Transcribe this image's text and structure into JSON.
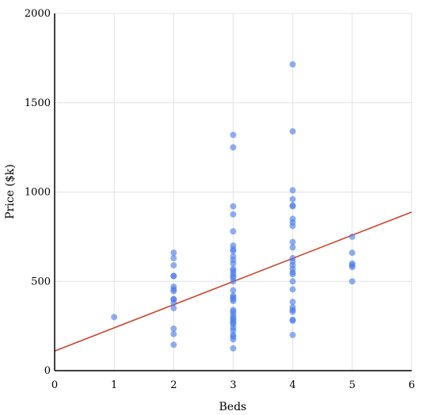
{
  "chart_data": {
    "type": "scatter",
    "title": "",
    "xlabel": "Beds",
    "ylabel": "Price ($k)",
    "xlim": [
      0,
      6
    ],
    "ylim": [
      0,
      2000
    ],
    "x_ticks": [
      0,
      1,
      2,
      3,
      4,
      5,
      6
    ],
    "y_ticks": [
      0,
      500,
      1000,
      1500,
      2000
    ],
    "grid": true,
    "legend": "none",
    "colors": {
      "points": "#4a7dea",
      "trend_line": "#d0442b",
      "grid": "#e4e4e4",
      "axes": "#000000"
    },
    "trend_line": {
      "x": [
        0,
        6
      ],
      "y": [
        110,
        888
      ]
    },
    "series": [
      {
        "points": [
          [
            1,
            300
          ],
          [
            2,
            660
          ],
          [
            2,
            630
          ],
          [
            2,
            590
          ],
          [
            2,
            530
          ],
          [
            2,
            530
          ],
          [
            2,
            470
          ],
          [
            2,
            455
          ],
          [
            2,
            445
          ],
          [
            2,
            400
          ],
          [
            2,
            400
          ],
          [
            2,
            380
          ],
          [
            2,
            350
          ],
          [
            2,
            235
          ],
          [
            2,
            205
          ],
          [
            2,
            145
          ],
          [
            3,
            1320
          ],
          [
            3,
            1250
          ],
          [
            3,
            920
          ],
          [
            3,
            875
          ],
          [
            3,
            780
          ],
          [
            3,
            700
          ],
          [
            3,
            680
          ],
          [
            3,
            670
          ],
          [
            3,
            640
          ],
          [
            3,
            620
          ],
          [
            3,
            600
          ],
          [
            3,
            570
          ],
          [
            3,
            560
          ],
          [
            3,
            545
          ],
          [
            3,
            530
          ],
          [
            3,
            520
          ],
          [
            3,
            500
          ],
          [
            3,
            450
          ],
          [
            3,
            420
          ],
          [
            3,
            410
          ],
          [
            3,
            400
          ],
          [
            3,
            390
          ],
          [
            3,
            340
          ],
          [
            3,
            330
          ],
          [
            3,
            315
          ],
          [
            3,
            300
          ],
          [
            3,
            290
          ],
          [
            3,
            280
          ],
          [
            3,
            270
          ],
          [
            3,
            260
          ],
          [
            3,
            240
          ],
          [
            3,
            225
          ],
          [
            3,
            200
          ],
          [
            3,
            190
          ],
          [
            3,
            175
          ],
          [
            3,
            125
          ],
          [
            4,
            1715
          ],
          [
            4,
            1340
          ],
          [
            4,
            1010
          ],
          [
            4,
            960
          ],
          [
            4,
            925
          ],
          [
            4,
            920
          ],
          [
            4,
            850
          ],
          [
            4,
            830
          ],
          [
            4,
            810
          ],
          [
            4,
            720
          ],
          [
            4,
            690
          ],
          [
            4,
            630
          ],
          [
            4,
            610
          ],
          [
            4,
            590
          ],
          [
            4,
            570
          ],
          [
            4,
            550
          ],
          [
            4,
            540
          ],
          [
            4,
            500
          ],
          [
            4,
            455
          ],
          [
            4,
            385
          ],
          [
            4,
            355
          ],
          [
            4,
            340
          ],
          [
            4,
            330
          ],
          [
            4,
            285
          ],
          [
            4,
            280
          ],
          [
            4,
            200
          ],
          [
            5,
            750
          ],
          [
            5,
            660
          ],
          [
            5,
            600
          ],
          [
            5,
            590
          ],
          [
            5,
            580
          ],
          [
            5,
            500
          ]
        ]
      }
    ]
  }
}
